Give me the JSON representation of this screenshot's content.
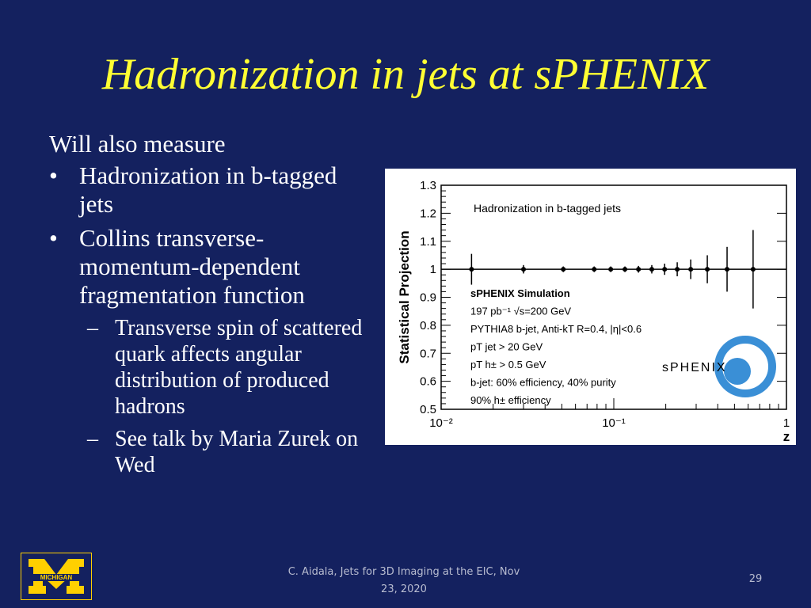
{
  "title": "Hadronization in jets at sPHENIX",
  "body": [
    {
      "level": 0,
      "text": "Will also measure"
    },
    {
      "level": 1,
      "text": "Hadronization in b-tagged jets"
    },
    {
      "level": 1,
      "text": "Collins transverse-momentum-dependent fragmentation function"
    },
    {
      "level": 2,
      "text": "Transverse spin of scattered quark affects angular distribution of produced hadrons"
    },
    {
      "level": 2,
      "text": "See talk by Maria Zurek on Wed"
    }
  ],
  "chart_data": {
    "type": "errorbar",
    "plot_title": "Hadronization in b-tagged jets",
    "ylabel": "Statistical Projection",
    "xlabel": "z",
    "annotations": [
      "sPHENIX Simulation",
      "197 pb⁻¹ √s=200 GeV",
      "PYTHIA8 b-jet, Anti-kT R=0.4, |η|<0.6",
      "pT jet > 20 GeV",
      "pT h± > 0.5 GeV",
      "b-jet: 60% efficiency, 40% purity",
      "90% h± efficiency"
    ],
    "logo": "sPHENIX",
    "x": [
      0.015,
      0.03,
      0.051,
      0.077,
      0.096,
      0.116,
      0.139,
      0.166,
      0.197,
      0.233,
      0.279,
      0.348,
      0.453,
      0.641
    ],
    "values": [
      1,
      1,
      1,
      1,
      1,
      1,
      1,
      1,
      1,
      1,
      1,
      1,
      1,
      1
    ],
    "errors": [
      0.055,
      0.015,
      0.01,
      0.01,
      0.01,
      0.01,
      0.012,
      0.015,
      0.02,
      0.025,
      0.035,
      0.05,
      0.08,
      0.14
    ],
    "reference_line": 1,
    "xlog": true,
    "xlim": [
      0.01,
      1
    ],
    "xticks": [
      {
        "value": 0.01,
        "label": "10⁻²"
      },
      {
        "value": 0.1,
        "label": "10⁻¹"
      },
      1
    ],
    "ylim": [
      0.5,
      1.3
    ],
    "yticks": [
      0.5,
      0.6,
      0.7,
      0.8,
      0.9,
      1,
      1.1,
      1.2,
      1.3
    ],
    "color": "#000000"
  },
  "footer": {
    "citation": "C. Aidala, Jets for 3D Imaging at the EIC, Nov 23, 2020",
    "page": "29",
    "logo_text": "MICHIGAN"
  }
}
